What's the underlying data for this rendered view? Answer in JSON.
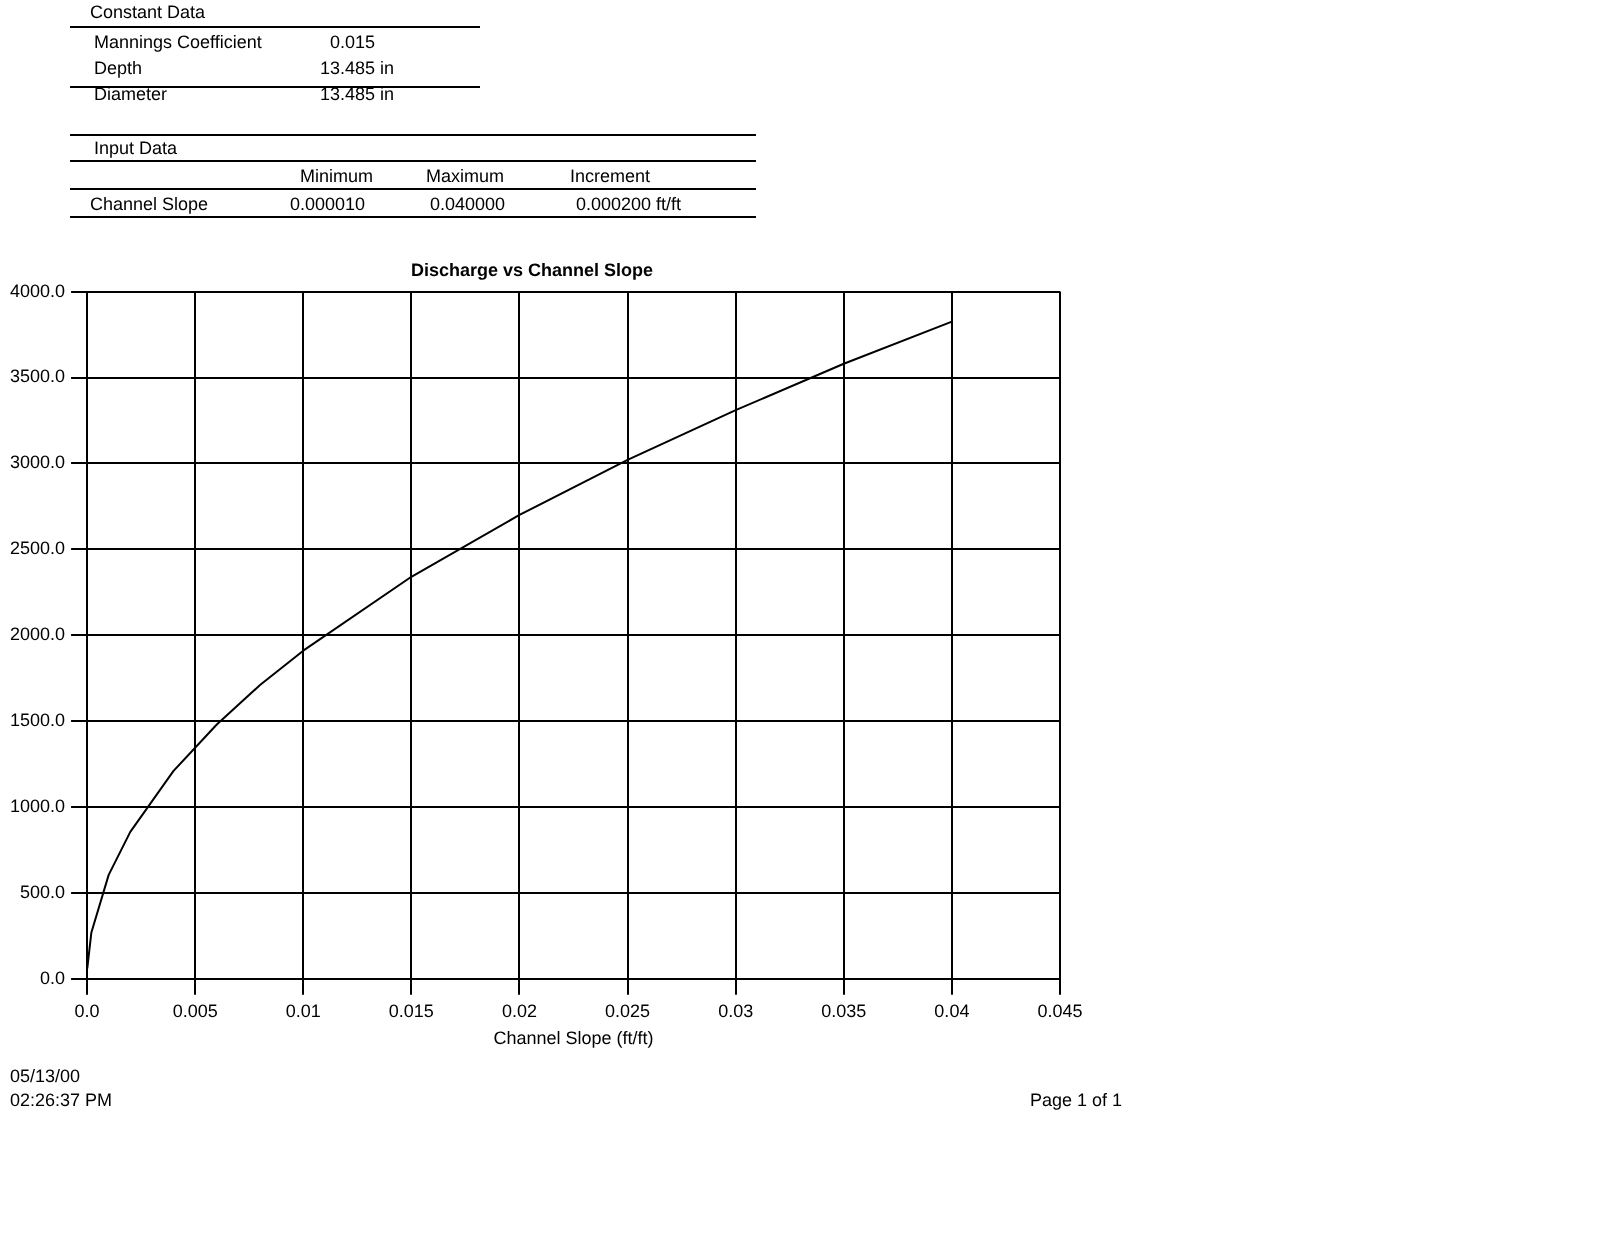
{
  "chart_data": {
    "type": "line",
    "title": "Discharge vs Channel Slope",
    "xlabel": "Channel Slope (ft/ft)",
    "x": [
      1e-05,
      0.0002,
      0.001,
      0.002,
      0.004,
      0.006,
      0.008,
      0.01,
      0.015,
      0.02,
      0.025,
      0.03,
      0.035,
      0.04
    ],
    "series": [
      {
        "color": "#000000",
        "values": [
          60,
          270,
          605,
          855,
          1210,
          1480,
          1710,
          1910,
          2340,
          2700,
          3020,
          3310,
          3580,
          3825
        ]
      }
    ],
    "xlim": [
      0,
      0.045
    ],
    "xticks": [
      {
        "value": 0,
        "label": "0.0"
      },
      0.005,
      0.01,
      0.015,
      0.02,
      0.025,
      0.03,
      0.035,
      0.04,
      0.045
    ],
    "ylim": [
      0,
      4000
    ],
    "yticks": [
      {
        "value": 0,
        "label": "0.0"
      },
      {
        "value": 500,
        "label": "500.0"
      },
      {
        "value": 1000,
        "label": "1000.0"
      },
      {
        "value": 1500,
        "label": "1500.0"
      },
      {
        "value": 2000,
        "label": "2000.0"
      },
      {
        "value": 2500,
        "label": "2500.0"
      },
      {
        "value": 3000,
        "label": "3000.0"
      },
      {
        "value": 3500,
        "label": "3500.0"
      },
      {
        "value": 4000,
        "label": "4000.0"
      }
    ],
    "grid": true,
    "legend": false,
    "marker": "none",
    "line_style": "solid",
    "annotations": [
      "Constant Data",
      "Mannings Coefficient",
      "0.015",
      "Depth",
      "13.485 in",
      "Diameter",
      "13.485 in",
      "Input Data",
      "Minimum",
      "Maximum",
      "Increment",
      "Channel Slope",
      "0.000010",
      "0.040000",
      "0.000200 ft/ft",
      "05/13/00",
      "02:26:37 PM",
      "Page 1 of 1"
    ]
  }
}
